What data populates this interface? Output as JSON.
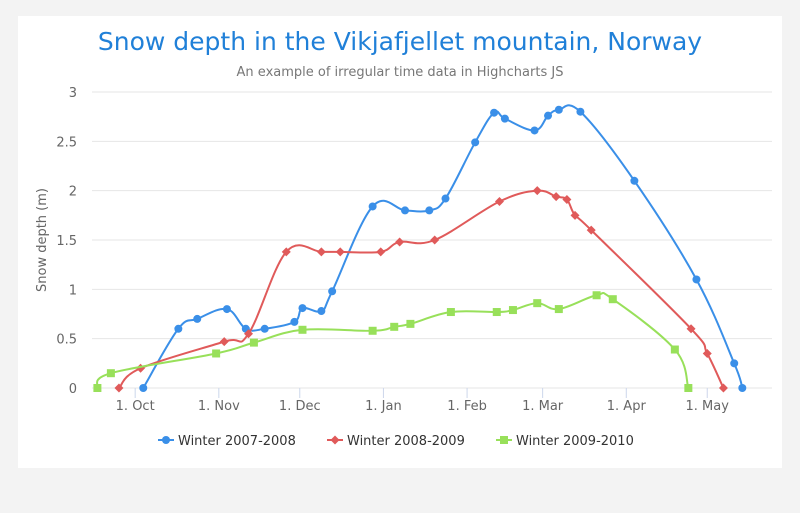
{
  "chart_data": {
    "type": "line",
    "title": "Snow depth in the Vikjafjellet mountain, Norway",
    "subtitle": "An example of irregular time data in Highcharts JS",
    "ylabel": "Snow depth (m)",
    "xlabel": "",
    "ylim": [
      0,
      3
    ],
    "yticks": [
      0,
      0.5,
      1,
      1.5,
      2,
      2.5,
      3
    ],
    "ytick_labels": [
      "0",
      "0.5",
      "1",
      "1.5",
      "2",
      "2.5",
      "3"
    ],
    "xlim": [
      "1970-09-15",
      "1971-05-25"
    ],
    "xticks": [
      "1970-10-01",
      "1970-11-01",
      "1970-12-01",
      "1971-01-01",
      "1971-02-01",
      "1971-03-01",
      "1971-04-01",
      "1971-05-01"
    ],
    "xtick_labels": [
      "1. Oct",
      "1. Nov",
      "1. Dec",
      "1. Jan",
      "1. Feb",
      "1. Mar",
      "1. Apr",
      "1. May"
    ],
    "grid": true,
    "legend": "bottom",
    "title_color": "#2080d8",
    "series": [
      {
        "name": "Winter 2007-2008",
        "color": "#3a8fe8",
        "marker": "circle",
        "points": [
          [
            "1970-10-04",
            0
          ],
          [
            "1970-10-17",
            0.6
          ],
          [
            "1970-10-24",
            0.7
          ],
          [
            "1970-11-04",
            0.8
          ],
          [
            "1970-11-11",
            0.6
          ],
          [
            "1970-11-18",
            0.6
          ],
          [
            "1970-11-29",
            0.67
          ],
          [
            "1970-12-02",
            0.81
          ],
          [
            "1970-12-09",
            0.78
          ],
          [
            "1970-12-13",
            0.98
          ],
          [
            "1970-12-28",
            1.84
          ],
          [
            "1971-01-09",
            1.8
          ],
          [
            "1971-01-18",
            1.8
          ],
          [
            "1971-01-24",
            1.92
          ],
          [
            "1971-02-04",
            2.49
          ],
          [
            "1971-02-11",
            2.79
          ],
          [
            "1971-02-15",
            2.73
          ],
          [
            "1971-02-26",
            2.61
          ],
          [
            "1971-03-03",
            2.76
          ],
          [
            "1971-03-07",
            2.82
          ],
          [
            "1971-03-15",
            2.8
          ],
          [
            "1971-04-04",
            2.1
          ],
          [
            "1971-04-27",
            1.1
          ],
          [
            "1971-05-11",
            0.25
          ],
          [
            "1971-05-14",
            0
          ]
        ]
      },
      {
        "name": "Winter 2008-2009",
        "color": "#e05a5a",
        "marker": "diamond",
        "points": [
          [
            "1970-09-25",
            0
          ],
          [
            "1970-10-03",
            0.2
          ],
          [
            "1970-11-03",
            0.47
          ],
          [
            "1970-11-12",
            0.55
          ],
          [
            "1970-11-26",
            1.38
          ],
          [
            "1970-12-09",
            1.38
          ],
          [
            "1970-12-16",
            1.38
          ],
          [
            "1970-12-31",
            1.38
          ],
          [
            "1971-01-07",
            1.48
          ],
          [
            "1971-01-20",
            1.5
          ],
          [
            "1971-02-13",
            1.89
          ],
          [
            "1971-02-27",
            2.0
          ],
          [
            "1971-03-06",
            1.94
          ],
          [
            "1971-03-10",
            1.91
          ],
          [
            "1971-03-13",
            1.75
          ],
          [
            "1971-03-19",
            1.6
          ],
          [
            "1971-04-25",
            0.6
          ],
          [
            "1971-05-01",
            0.35
          ],
          [
            "1971-05-07",
            0
          ]
        ]
      },
      {
        "name": "Winter 2009-2010",
        "color": "#98e05a",
        "marker": "square",
        "points": [
          [
            "1970-09-17",
            0
          ],
          [
            "1970-09-22",
            0.15
          ],
          [
            "1970-10-31",
            0.35
          ],
          [
            "1970-11-14",
            0.46
          ],
          [
            "1970-12-02",
            0.59
          ],
          [
            "1970-12-28",
            0.58
          ],
          [
            "1971-01-05",
            0.62
          ],
          [
            "1971-01-11",
            0.65
          ],
          [
            "1971-01-26",
            0.77
          ],
          [
            "1971-02-12",
            0.77
          ],
          [
            "1971-02-18",
            0.79
          ],
          [
            "1971-02-27",
            0.86
          ],
          [
            "1971-03-07",
            0.8
          ],
          [
            "1971-03-21",
            0.94
          ],
          [
            "1971-03-27",
            0.9
          ],
          [
            "1971-04-19",
            0.39
          ],
          [
            "1971-04-24",
            0
          ]
        ]
      }
    ]
  }
}
